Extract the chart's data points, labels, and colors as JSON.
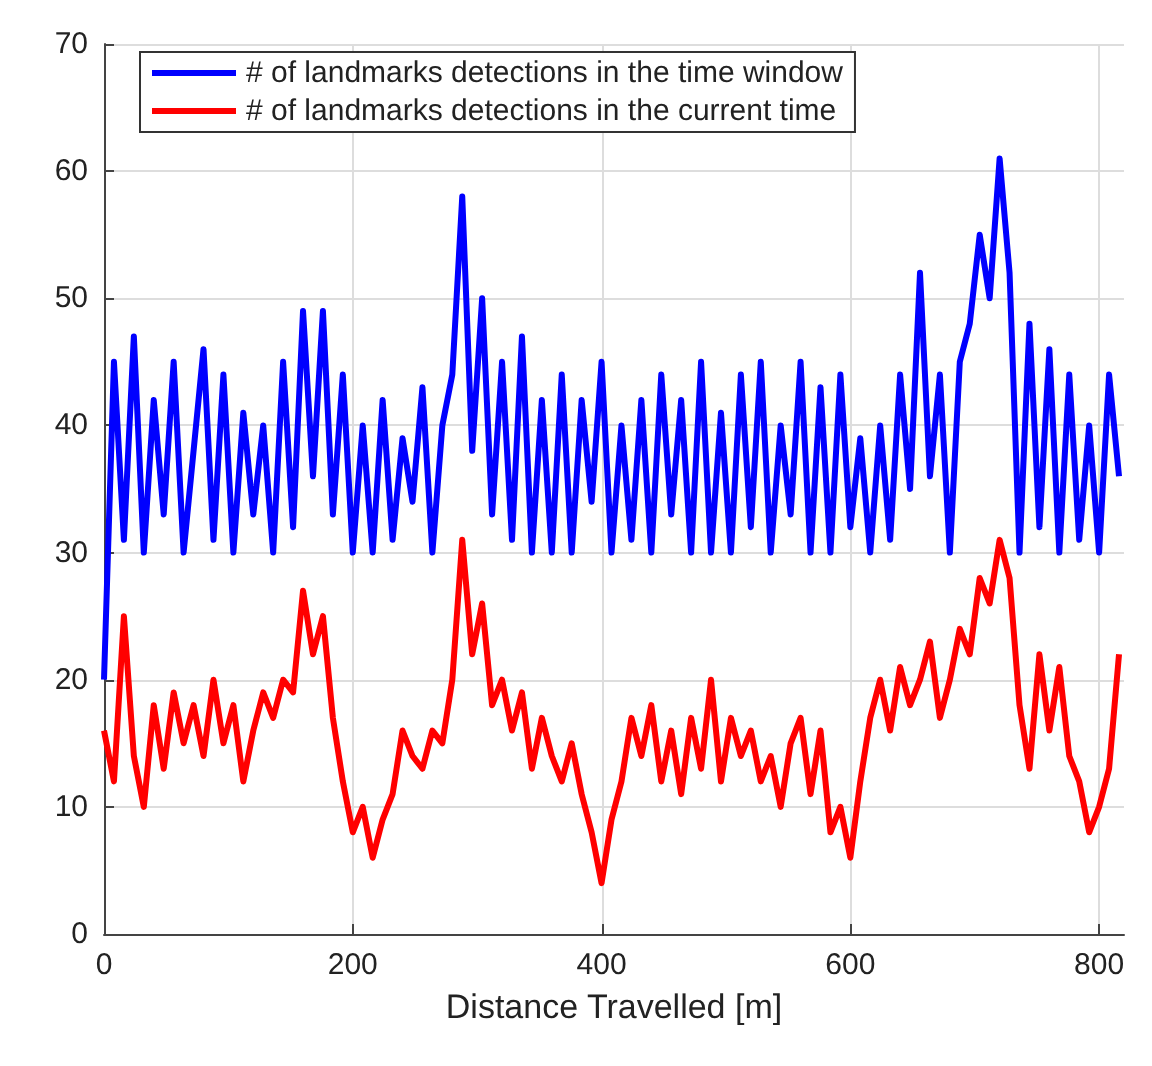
{
  "chart_data": {
    "type": "line",
    "xlabel": "Distance Travelled [m]",
    "x": [
      0,
      8,
      16,
      24,
      32,
      40,
      48,
      56,
      64,
      72,
      80,
      88,
      96,
      104,
      112,
      120,
      128,
      136,
      144,
      152,
      160,
      168,
      176,
      184,
      192,
      200,
      208,
      216,
      224,
      232,
      240,
      248,
      256,
      264,
      272,
      280,
      288,
      296,
      304,
      312,
      320,
      328,
      336,
      344,
      352,
      360,
      368,
      376,
      384,
      392,
      400,
      408,
      416,
      424,
      432,
      440,
      448,
      456,
      464,
      472,
      480,
      488,
      496,
      504,
      512,
      520,
      528,
      536,
      544,
      552,
      560,
      568,
      576,
      584,
      592,
      600,
      608,
      616,
      624,
      632,
      640,
      648,
      656,
      664,
      672,
      680,
      688,
      696,
      704,
      712,
      720,
      728,
      736,
      744,
      752,
      760,
      768,
      776,
      784,
      792,
      800,
      808,
      816
    ],
    "series": [
      {
        "name": "# of landmarks detections in the time window",
        "color": "#0000ff",
        "values": [
          20,
          45,
          31,
          47,
          30,
          42,
          33,
          45,
          30,
          38,
          46,
          31,
          44,
          30,
          41,
          33,
          40,
          30,
          45,
          32,
          49,
          36,
          49,
          33,
          44,
          30,
          40,
          30,
          42,
          31,
          39,
          34,
          43,
          30,
          40,
          44,
          58,
          38,
          50,
          33,
          45,
          31,
          47,
          30,
          42,
          30,
          44,
          30,
          42,
          34,
          45,
          30,
          40,
          31,
          42,
          30,
          44,
          33,
          42,
          30,
          45,
          30,
          41,
          30,
          44,
          32,
          45,
          30,
          40,
          33,
          45,
          30,
          43,
          30,
          44,
          32,
          39,
          30,
          40,
          31,
          44,
          35,
          52,
          36,
          44,
          30,
          45,
          48,
          55,
          50,
          61,
          52,
          30,
          48,
          32,
          46,
          30,
          44,
          31,
          40,
          30,
          44,
          36
        ]
      },
      {
        "name": "# of landmarks detections in the current time",
        "color": "#ff0000",
        "values": [
          16,
          12,
          25,
          14,
          10,
          18,
          13,
          19,
          15,
          18,
          14,
          20,
          15,
          18,
          12,
          16,
          19,
          17,
          20,
          19,
          27,
          22,
          25,
          17,
          12,
          8,
          10,
          6,
          9,
          11,
          16,
          14,
          13,
          16,
          15,
          20,
          31,
          22,
          26,
          18,
          20,
          16,
          19,
          13,
          17,
          14,
          12,
          15,
          11,
          8,
          4,
          9,
          12,
          17,
          14,
          18,
          12,
          16,
          11,
          17,
          13,
          20,
          12,
          17,
          14,
          16,
          12,
          14,
          10,
          15,
          17,
          11,
          16,
          8,
          10,
          6,
          12,
          17,
          20,
          16,
          21,
          18,
          20,
          23,
          17,
          20,
          24,
          22,
          28,
          26,
          31,
          28,
          18,
          13,
          22,
          16,
          21,
          14,
          12,
          8,
          10,
          13,
          22
        ]
      }
    ],
    "xlim": [
      0,
      820
    ],
    "xticks": [
      0,
      200,
      400,
      600,
      800
    ],
    "ylim": [
      0,
      70
    ],
    "yticks": [
      0,
      10,
      20,
      30,
      40,
      50,
      60,
      70
    ],
    "grid": true,
    "legend": "top left",
    "marker": "none",
    "line_style": "solid"
  }
}
